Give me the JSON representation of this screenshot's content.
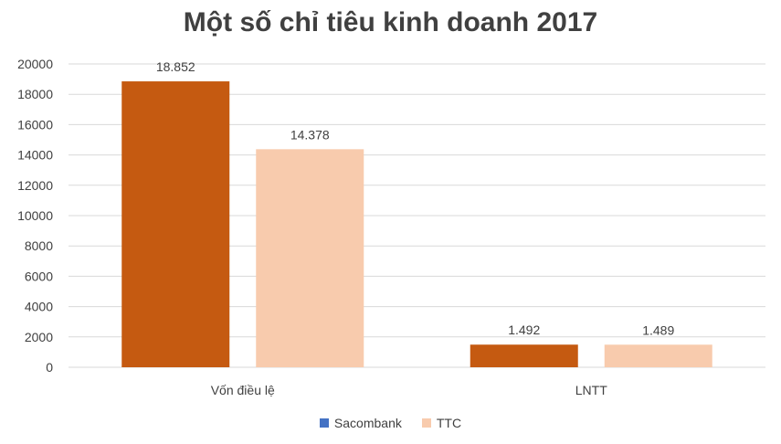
{
  "chart_data": {
    "type": "bar",
    "title": "Một số chỉ tiêu kinh doanh 2017",
    "categories": [
      "Vốn điều lệ",
      "LNTT"
    ],
    "series": [
      {
        "name": "Sacombank",
        "values": [
          18852,
          1492
        ],
        "labels": [
          "18.852",
          "1.492"
        ],
        "color": "#C55A11",
        "legend_color": "#4472C4"
      },
      {
        "name": "TTC",
        "values": [
          14378,
          1489
        ],
        "labels": [
          "14.378",
          "1.489"
        ],
        "color": "#F8CBAD",
        "legend_color": "#F8CBAD"
      }
    ],
    "y_ticks": [
      "0",
      "2000",
      "4000",
      "6000",
      "8000",
      "10000",
      "12000",
      "14000",
      "16000",
      "18000",
      "20000"
    ],
    "ylim": [
      0,
      20000
    ],
    "grid": true,
    "legend_position": "bottom",
    "colors": {
      "gridline": "#D9D9D9",
      "text": "#404040"
    }
  }
}
